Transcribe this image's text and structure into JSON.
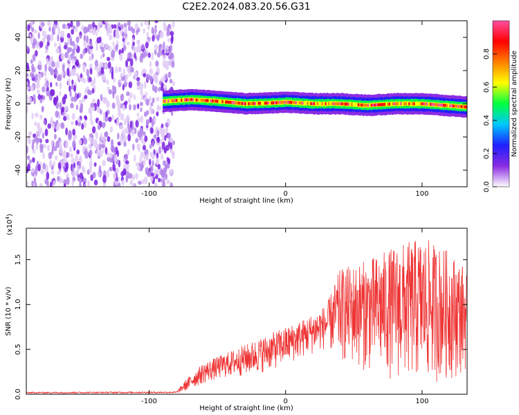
{
  "title": "C2E2.2024.083.20.56.G31",
  "colors": {
    "signal": "#ee3333",
    "noise": "#8a2be2",
    "axis": "#000000"
  },
  "chart_data": [
    {
      "type": "heatmap",
      "xlabel": "Height of straight line (km)",
      "ylabel": "Frequency (Hz)",
      "xlim": [
        -190,
        133
      ],
      "ylim": [
        -50,
        50
      ],
      "x_ticks": [
        -100,
        0,
        100
      ],
      "x_tick_labels": [
        "-100",
        "0",
        "100"
      ],
      "y_ticks": [
        -40,
        -20,
        0,
        20,
        40
      ],
      "y_tick_labels": [
        "-40",
        "-20",
        "0",
        "20",
        "40"
      ],
      "colorbar": {
        "label": "Normalized spectral amplitude",
        "range": [
          0,
          1
        ],
        "ticks": [
          0.0,
          0.2,
          0.4,
          0.6,
          0.8
        ],
        "tick_labels": [
          "0.0",
          "0.2",
          "0.4",
          "0.6",
          "0.8"
        ],
        "colormap": [
          "#ffffff",
          "#8a2be2",
          "#2020ff",
          "#00c8ff",
          "#00ff40",
          "#ffff00",
          "#ff8000",
          "#ff0000",
          "#ff4fa0"
        ]
      },
      "noise_region_x": [
        -190,
        -82
      ],
      "signal_start_x": -90,
      "signal_band_center_hz": [
        [
          -90,
          1.5
        ],
        [
          -70,
          2.5
        ],
        [
          -50,
          1.5
        ],
        [
          -30,
          0
        ],
        [
          -10,
          0.5
        ],
        [
          0,
          1
        ],
        [
          20,
          0
        ],
        [
          40,
          0
        ],
        [
          60,
          -1
        ],
        [
          80,
          0
        ],
        [
          100,
          0
        ],
        [
          133,
          -2
        ]
      ],
      "signal_band_halfwidth_hz": 4
    },
    {
      "type": "line",
      "xlabel": "Height of straight line (km)",
      "ylabel": "SNR (10 * v/v)",
      "y_multiplier_label": "(x10",
      "y_multiplier_exponent": "4",
      "y_multiplier_close": ")",
      "xlim": [
        -190,
        133
      ],
      "ylim": [
        0,
        18500
      ],
      "x_ticks": [
        -100,
        0,
        100
      ],
      "x_tick_labels": [
        "-100",
        "0",
        "100"
      ],
      "y_ticks": [
        0,
        5000,
        10000,
        15000
      ],
      "y_tick_labels": [
        "0.0",
        "0.5",
        "1.0",
        "1.5"
      ],
      "series": [
        {
          "envelope": [
            [
              -190,
              80,
              250
            ],
            [
              -80,
              100,
              300
            ],
            [
              -72,
              400,
              1800
            ],
            [
              -60,
              1200,
              3500
            ],
            [
              -45,
              1800,
              4500
            ],
            [
              -30,
              2000,
              5500
            ],
            [
              -15,
              2500,
              6500
            ],
            [
              0,
              3200,
              7500
            ],
            [
              15,
              4200,
              8500
            ],
            [
              30,
              5000,
              10000
            ],
            [
              40,
              3500,
              14000
            ],
            [
              60,
              2500,
              15000
            ],
            [
              80,
              1500,
              16500
            ],
            [
              100,
              1000,
              17500
            ],
            [
              120,
              1500,
              16000
            ],
            [
              133,
              2500,
              14000
            ]
          ]
        }
      ]
    }
  ]
}
